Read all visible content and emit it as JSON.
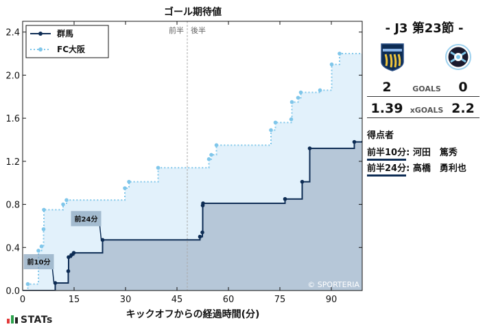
{
  "chart_data": {
    "type": "area",
    "title": "ゴール期待値",
    "xlabel": "キックオフからの経過時間(分)",
    "ylabel": "",
    "xlim": [
      0,
      99
    ],
    "ylim": [
      0,
      2.5
    ],
    "x_ticks": [
      0,
      15,
      30,
      45,
      60,
      75,
      90
    ],
    "y_ticks": [
      0.0,
      0.4,
      0.8,
      1.2,
      1.6,
      2.0,
      2.4
    ],
    "grid": false,
    "legend_position": "top-left",
    "halftime_minute": 48,
    "halftime_labels": [
      "前半",
      "後半"
    ],
    "watermark": "© SPORTERIA",
    "series": [
      {
        "name": "群馬",
        "color": "#0d2c54",
        "fill": "#b6c7d8",
        "style": "solid",
        "shots": [
          {
            "minute": 9.5,
            "xg": 0.07
          },
          {
            "minute": 13.3,
            "xg": 0.18
          },
          {
            "minute": 13.4,
            "xg": 0.31
          },
          {
            "minute": 14.2,
            "xg": 0.33
          },
          {
            "minute": 14.9,
            "xg": 0.35
          },
          {
            "minute": 23.3,
            "xg": 0.47
          },
          {
            "minute": 51.7,
            "xg": 0.5
          },
          {
            "minute": 52.4,
            "xg": 0.54
          },
          {
            "minute": 52.5,
            "xg": 0.79
          },
          {
            "minute": 52.6,
            "xg": 0.81
          },
          {
            "minute": 76.5,
            "xg": 0.85
          },
          {
            "minute": 81.5,
            "xg": 1.01
          },
          {
            "minute": 83.7,
            "xg": 1.32
          },
          {
            "minute": 96.7,
            "xg": 1.38
          },
          {
            "minute": 99.0,
            "xg": 1.39
          }
        ]
      },
      {
        "name": "FC大阪",
        "color": "#7fc6ea",
        "fill": "#e2f1fb",
        "style": "dotted",
        "shots": [
          {
            "minute": 1.5,
            "xg": 0.06
          },
          {
            "minute": 4.6,
            "xg": 0.37
          },
          {
            "minute": 5.5,
            "xg": 0.41
          },
          {
            "minute": 6.1,
            "xg": 0.57
          },
          {
            "minute": 6.2,
            "xg": 0.75
          },
          {
            "minute": 11.8,
            "xg": 0.8
          },
          {
            "minute": 12.8,
            "xg": 0.84
          },
          {
            "minute": 29.8,
            "xg": 0.95
          },
          {
            "minute": 31.0,
            "xg": 1.01
          },
          {
            "minute": 39.5,
            "xg": 1.14
          },
          {
            "minute": 54.3,
            "xg": 1.22
          },
          {
            "minute": 55.0,
            "xg": 1.26
          },
          {
            "minute": 56.5,
            "xg": 1.35
          },
          {
            "minute": 72.4,
            "xg": 1.49
          },
          {
            "minute": 73.7,
            "xg": 1.56
          },
          {
            "minute": 78.3,
            "xg": 1.59
          },
          {
            "minute": 78.5,
            "xg": 1.75
          },
          {
            "minute": 80.3,
            "xg": 1.79
          },
          {
            "minute": 81.1,
            "xg": 1.84
          },
          {
            "minute": 86.7,
            "xg": 1.86
          },
          {
            "minute": 90.1,
            "xg": 2.1
          },
          {
            "minute": 92.4,
            "xg": 2.2
          }
        ]
      }
    ],
    "annotations": [
      {
        "label": "前10分",
        "minute": 9.5,
        "xg": 0.07
      },
      {
        "label": "前24分",
        "minute": 23.3,
        "xg": 0.47
      }
    ]
  },
  "match": {
    "title": "-  J3 第23節  -",
    "home_crest": "thespakusatsu-gunma-crest-icon",
    "away_crest": "fc-osaka-crest-icon",
    "home_goals": "2",
    "away_goals": "0",
    "goals_label": "GOALS",
    "home_xg": "1.39",
    "away_xg": "2.2",
    "xg_label": "xGOALS"
  },
  "scorers_title": "得点者",
  "scorers": [
    {
      "time": "前半10分",
      "name": ": 河田　篤秀"
    },
    {
      "time": "前半24分",
      "name": ": 高橋　勇利也"
    }
  ],
  "brand": "STATs"
}
